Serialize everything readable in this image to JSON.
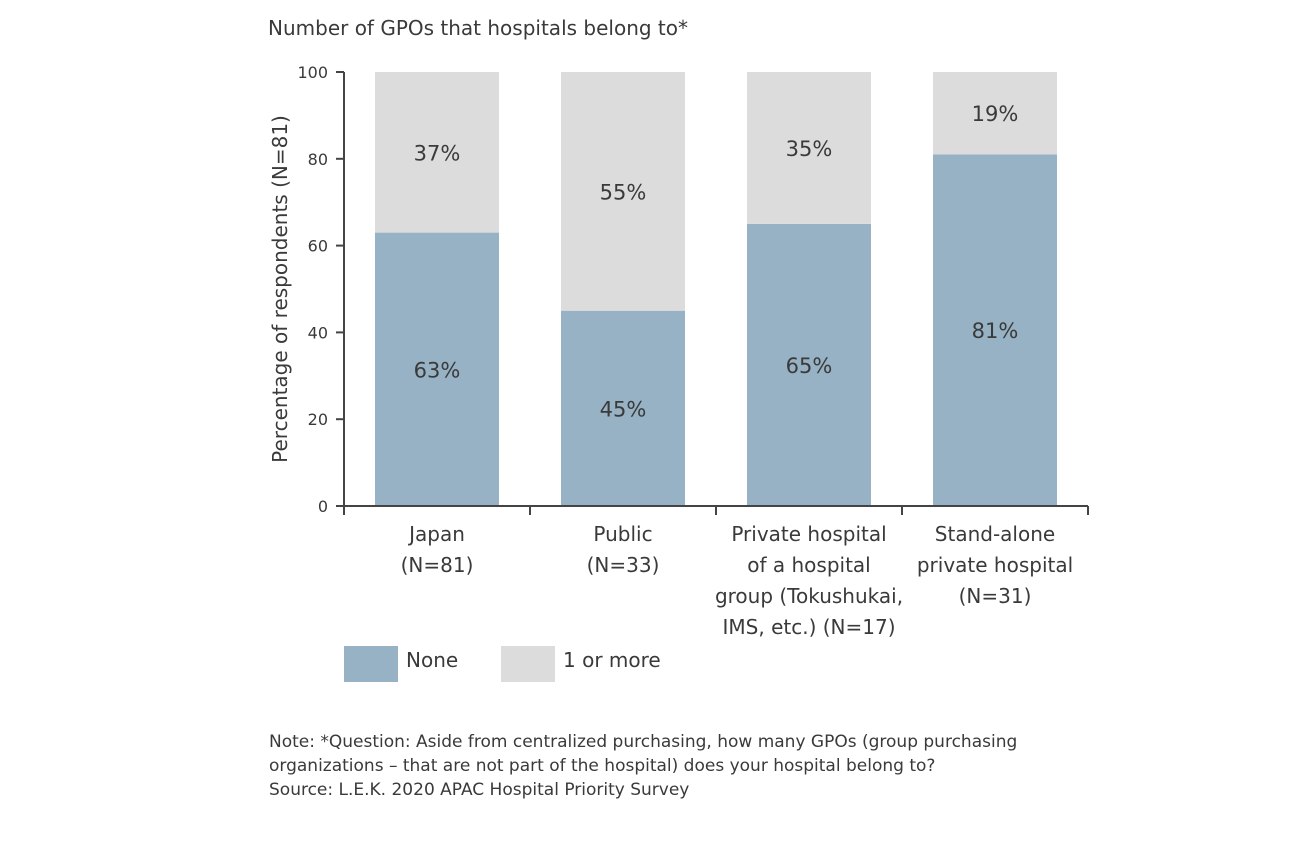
{
  "chart_data": {
    "type": "bar",
    "stacked": true,
    "title": "Number of GPOs that hospitals belong to*",
    "ylabel": "Percentage of respondents (N=81)",
    "xlabel": "",
    "ylim": [
      0,
      100
    ],
    "yticks": [
      0,
      20,
      40,
      60,
      80,
      100
    ],
    "grid": false,
    "legend": "bottom-left",
    "categories": [
      "Japan\n(N=81)",
      "Public\n(N=33)",
      "Private hospital\nof a hospital\ngroup (Tokushukai,\nIMS, etc.) (N=17)",
      "Stand-alone\nprivate hospital\n(N=31)"
    ],
    "series": [
      {
        "name": "None",
        "color": "#97b2c5",
        "values": [
          63,
          45,
          65,
          81
        ],
        "labels": [
          "63%",
          "45%",
          "65%",
          "81%"
        ]
      },
      {
        "name": "1 or more",
        "color": "#dcdcdc",
        "values": [
          37,
          55,
          35,
          19
        ],
        "labels": [
          "37%",
          "55%",
          "35%",
          "19%"
        ]
      }
    ]
  },
  "notes": {
    "note": "Note: *Question: Aside from centralized purchasing, how many GPOs (group purchasing organizations – that are not part of the hospital) does your hospital belong to?",
    "source": "Source: L.E.K. 2020 APAC Hospital Priority Survey"
  }
}
